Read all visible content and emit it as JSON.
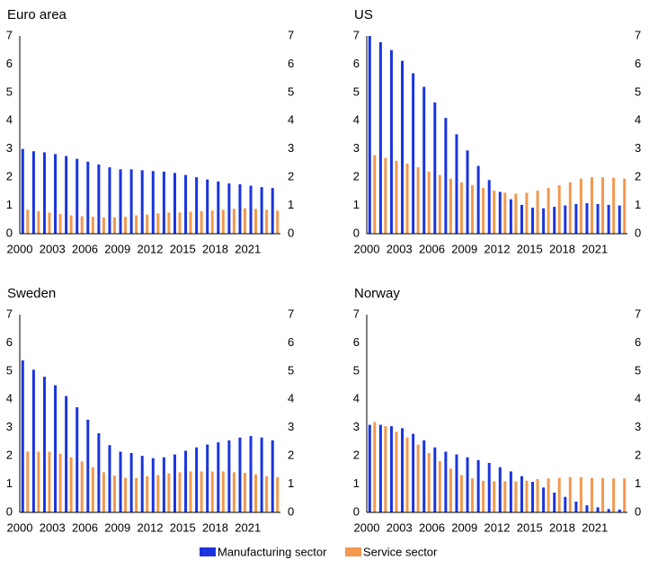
{
  "chart_data": [
    {
      "type": "bar",
      "title": "Euro area",
      "categories": [
        "2000",
        null,
        null,
        "2003",
        null,
        null,
        "2006",
        null,
        null,
        "2009",
        null,
        null,
        "2012",
        null,
        null,
        "2015",
        null,
        null,
        "2018",
        null,
        null,
        "2021",
        null,
        null
      ],
      "series": [
        {
          "name": "Manufacturing sector",
          "color": "#1a34e0",
          "values": [
            3.0,
            2.92,
            2.88,
            2.82,
            2.75,
            2.65,
            2.55,
            2.45,
            2.35,
            2.28,
            2.28,
            2.25,
            2.22,
            2.2,
            2.15,
            2.08,
            2.0,
            1.92,
            1.85,
            1.78,
            1.75,
            1.7,
            1.65,
            1.62
          ]
        },
        {
          "name": "Service sector",
          "color": "#f2984f",
          "values": [
            0.85,
            0.8,
            0.75,
            0.7,
            0.65,
            0.62,
            0.6,
            0.58,
            0.58,
            0.6,
            0.65,
            0.68,
            0.72,
            0.75,
            0.75,
            0.78,
            0.8,
            0.82,
            0.85,
            0.88,
            0.9,
            0.88,
            0.85,
            0.82
          ]
        }
      ],
      "ylim": [
        0,
        7
      ],
      "yticks": [
        0,
        1,
        2,
        3,
        4,
        5,
        6,
        7
      ],
      "y2lim": [
        0,
        7
      ],
      "y2ticks": [
        0,
        1,
        2,
        3,
        4,
        5,
        6,
        7
      ]
    },
    {
      "type": "bar",
      "title": "US",
      "categories": [
        "2000",
        null,
        null,
        "2003",
        null,
        null,
        "2006",
        null,
        null,
        "2009",
        null,
        null,
        "2012",
        null,
        null,
        "2015",
        null,
        null,
        "2018",
        null,
        null,
        "2021",
        null,
        null
      ],
      "series": [
        {
          "name": "Manufacturing sector",
          "color": "#1a34e0",
          "values": [
            7.0,
            6.78,
            6.5,
            6.12,
            5.68,
            5.2,
            4.65,
            4.1,
            3.52,
            2.95,
            2.4,
            1.9,
            1.48,
            1.22,
            1.02,
            0.92,
            0.9,
            0.95,
            1.0,
            1.05,
            1.08,
            1.05,
            1.02,
            1.0
          ]
        },
        {
          "name": "Service sector",
          "color": "#f2984f",
          "values": [
            2.78,
            2.68,
            2.58,
            2.48,
            2.35,
            2.2,
            2.08,
            1.95,
            1.82,
            1.72,
            1.62,
            1.52,
            1.45,
            1.42,
            1.45,
            1.52,
            1.62,
            1.72,
            1.82,
            1.95,
            2.0,
            2.0,
            1.98,
            1.95
          ]
        }
      ],
      "ylim": [
        0,
        7
      ],
      "yticks": [
        0,
        1,
        2,
        3,
        4,
        5,
        6,
        7
      ],
      "y2lim": [
        0,
        7
      ],
      "y2ticks": [
        0,
        1,
        2,
        3,
        4,
        5,
        6,
        7
      ]
    },
    {
      "type": "bar",
      "title": "Sweden",
      "categories": [
        "2000",
        null,
        null,
        "2003",
        null,
        null,
        "2006",
        null,
        null,
        "2009",
        null,
        null,
        "2012",
        null,
        null,
        "2015",
        null,
        null,
        "2018",
        null,
        null,
        "2021",
        null,
        null
      ],
      "series": [
        {
          "name": "Manufacturing sector",
          "color": "#1a34e0",
          "values": [
            5.38,
            5.05,
            4.8,
            4.5,
            4.12,
            3.72,
            3.28,
            2.8,
            2.38,
            2.15,
            2.1,
            2.0,
            1.92,
            1.95,
            2.05,
            2.18,
            2.3,
            2.4,
            2.48,
            2.55,
            2.65,
            2.7,
            2.65,
            2.55
          ]
        },
        {
          "name": "Service sector",
          "color": "#f2984f",
          "values": [
            2.15,
            2.15,
            2.15,
            2.08,
            1.95,
            1.8,
            1.6,
            1.42,
            1.3,
            1.22,
            1.22,
            1.28,
            1.32,
            1.38,
            1.42,
            1.45,
            1.45,
            1.45,
            1.45,
            1.42,
            1.4,
            1.35,
            1.28,
            1.25
          ]
        }
      ],
      "ylim": [
        0,
        7
      ],
      "yticks": [
        0,
        1,
        2,
        3,
        4,
        5,
        6,
        7
      ],
      "y2lim": [
        0,
        7
      ],
      "y2ticks": [
        0,
        1,
        2,
        3,
        4,
        5,
        6,
        7
      ]
    },
    {
      "type": "bar",
      "title": "Norway",
      "categories": [
        "2000",
        null,
        null,
        "2003",
        null,
        null,
        "2006",
        null,
        null,
        "2009",
        null,
        null,
        "2012",
        null,
        null,
        "2015",
        null,
        null,
        "2018",
        null,
        null,
        "2021",
        null,
        null
      ],
      "series": [
        {
          "name": "Manufacturing sector",
          "color": "#1a34e0",
          "values": [
            3.1,
            3.1,
            3.05,
            2.98,
            2.78,
            2.55,
            2.3,
            2.15,
            2.05,
            1.95,
            1.85,
            1.75,
            1.6,
            1.45,
            1.28,
            1.08,
            0.88,
            0.7,
            0.55,
            0.38,
            0.25,
            0.18,
            0.12,
            0.1
          ]
        },
        {
          "name": "Service sector",
          "color": "#f2984f",
          "values": [
            3.2,
            3.05,
            2.85,
            2.65,
            2.4,
            2.1,
            1.82,
            1.55,
            1.32,
            1.2,
            1.12,
            1.1,
            1.1,
            1.1,
            1.12,
            1.18,
            1.2,
            1.22,
            1.25,
            1.25,
            1.22,
            1.22,
            1.2,
            1.2
          ]
        }
      ],
      "ylim": [
        0,
        7
      ],
      "yticks": [
        0,
        1,
        2,
        3,
        4,
        5,
        6,
        7
      ],
      "y2lim": [
        0,
        7
      ],
      "y2ticks": [
        0,
        1,
        2,
        3,
        4,
        5,
        6,
        7
      ]
    }
  ]
}
